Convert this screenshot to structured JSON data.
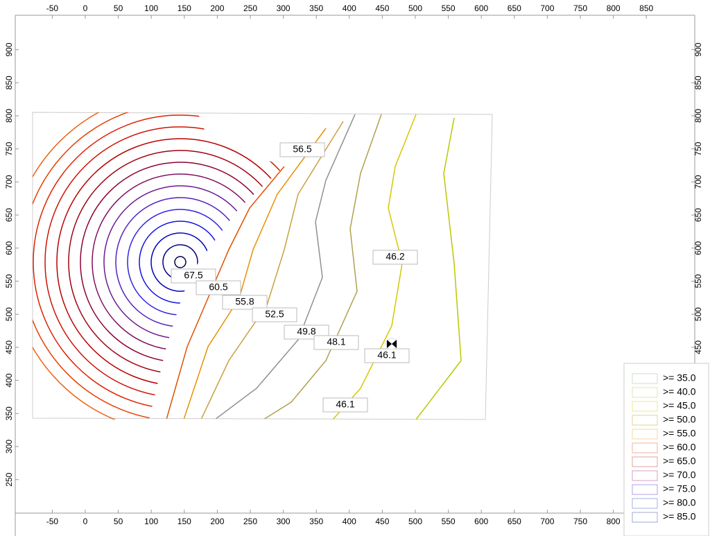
{
  "axes": {
    "xticks": [
      -50,
      0,
      50,
      100,
      150,
      200,
      250,
      300,
      350,
      400,
      450,
      500,
      550,
      600,
      650,
      700,
      750,
      800,
      850
    ],
    "yticks": [
      250,
      300,
      350,
      400,
      450,
      500,
      550,
      600,
      650,
      700,
      750,
      800,
      850,
      900
    ]
  },
  "contour_labels": [
    "56.5",
    "46.2",
    "67.5",
    "60.5",
    "55.8",
    "52.5",
    "49.8",
    "48.1",
    "46.1",
    "46.1"
  ],
  "legend": {
    "items": [
      {
        "label": ">= 35.0",
        "color": "#c8e0c8"
      },
      {
        "label": ">= 40.0",
        "color": "#d8e8b0"
      },
      {
        "label": ">= 45.0",
        "color": "#e8e890"
      },
      {
        "label": ">= 50.0",
        "color": "#e0d0a0"
      },
      {
        "label": ">= 55.0",
        "color": "#f0d8a0"
      },
      {
        "label": ">= 60.0",
        "color": "#f0b0a0"
      },
      {
        "label": ">= 65.0",
        "color": "#e0a0a0"
      },
      {
        "label": ">= 70.0",
        "color": "#d0a0c8"
      },
      {
        "label": ">= 75.0",
        "color": "#b0a0e0"
      },
      {
        "label": ">= 80.0",
        "color": "#a0b0e8"
      },
      {
        "label": ">= 85.0",
        "color": "#a0a8d0"
      }
    ]
  }
}
